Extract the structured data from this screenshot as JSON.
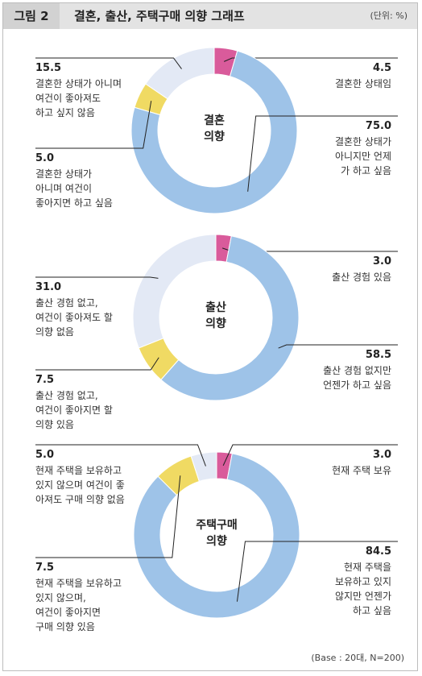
{
  "header": {
    "figure_label": "그림 2",
    "title": "결혼, 출산, 주택구매 의향 그래프",
    "unit": "(단위: %)"
  },
  "footer": {
    "base_note": "(Base : 20대, N=200)"
  },
  "colors": {
    "pink": "#d95b9b",
    "blue": "#9ec3e8",
    "yellow": "#f0da63",
    "light": "#e3e9f5"
  },
  "chart_data": [
    {
      "type": "pie",
      "title": "결혼\n의향",
      "slices": [
        {
          "value": 4.5,
          "value_label": "4.5",
          "label": "결혼한 상태임",
          "color": "pink"
        },
        {
          "value": 75.0,
          "value_label": "75.0",
          "label": "결혼한 상태가\n아니지만 언제\n가 하고 싶음",
          "color": "blue"
        },
        {
          "value": 5.0,
          "value_label": "5.0",
          "label": "결혼한 상태가\n아니며 여건이\n좋아지면 하고 싶음",
          "color": "yellow"
        },
        {
          "value": 15.5,
          "value_label": "15.5",
          "label": "결혼한 상태가 아니며\n여건이 좋아져도\n하고 싶지 않음",
          "color": "light"
        }
      ]
    },
    {
      "type": "pie",
      "title": "출산\n의향",
      "slices": [
        {
          "value": 3.0,
          "value_label": "3.0",
          "label": "출산 경험 있음",
          "color": "pink"
        },
        {
          "value": 58.5,
          "value_label": "58.5",
          "label": "출산 경험 없지만\n언젠가 하고 싶음",
          "color": "blue"
        },
        {
          "value": 7.5,
          "value_label": "7.5",
          "label": "출산 경험 없고,\n여건이 좋아지면 할\n의향 있음",
          "color": "yellow"
        },
        {
          "value": 31.0,
          "value_label": "31.0",
          "label": "출산 경험 없고,\n여건이 좋아져도 할\n의향 없음",
          "color": "light"
        }
      ]
    },
    {
      "type": "pie",
      "title": "주택구매\n의향",
      "slices": [
        {
          "value": 3.0,
          "value_label": "3.0",
          "label": "현재 주택 보유",
          "color": "pink"
        },
        {
          "value": 84.5,
          "value_label": "84.5",
          "label": "현재 주택을\n보유하고 있지\n않지만 언젠가\n하고 싶음",
          "color": "blue"
        },
        {
          "value": 7.5,
          "value_label": "7.5",
          "label": "현재 주택을 보유하고\n있지 않으며,\n여건이 좋아지면\n구매 의향 있음",
          "color": "yellow"
        },
        {
          "value": 5.0,
          "value_label": "5.0",
          "label": "현재 주택을 보유하고\n있지 않으며 여건이 좋\n아져도 구매 의향 없음",
          "color": "light"
        }
      ]
    }
  ]
}
